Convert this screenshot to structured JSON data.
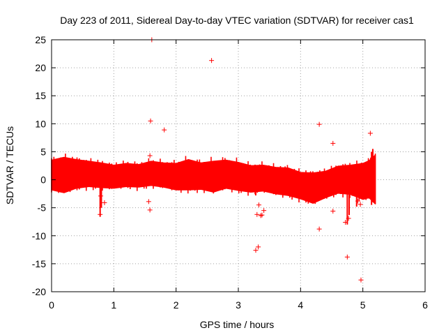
{
  "chart_data": {
    "type": "scatter",
    "title": "Day 223 of 2011, Sidereal Day-to-day VTEC variation (SDTVAR) for receiver cas1",
    "xlabel": "GPS time / hours",
    "ylabel": "SDTVAR / TECUs",
    "xlim": [
      0,
      6
    ],
    "ylim": [
      -20,
      25
    ],
    "xticks": [
      0,
      1,
      2,
      3,
      4,
      5,
      6
    ],
    "yticks": [
      -20,
      -15,
      -10,
      -5,
      0,
      5,
      10,
      15,
      20,
      25
    ],
    "grid": true,
    "legend": "none",
    "marker": "plus",
    "color": "#ff0000",
    "series": [
      {
        "name": "band_upper",
        "x": [
          0.0,
          0.2,
          0.4,
          0.6,
          0.8,
          1.0,
          1.2,
          1.4,
          1.6,
          1.8,
          2.0,
          2.2,
          2.4,
          2.6,
          2.8,
          3.0,
          3.2,
          3.4,
          3.6,
          3.8,
          4.0,
          4.2,
          4.4,
          4.6,
          4.8,
          5.0,
          5.1,
          5.2
        ],
        "values": [
          3.5,
          4.0,
          3.6,
          3.3,
          3.0,
          2.6,
          2.9,
          2.7,
          3.3,
          3.0,
          2.9,
          3.6,
          3.0,
          3.3,
          3.5,
          3.1,
          2.5,
          2.6,
          2.2,
          2.1,
          1.3,
          1.2,
          1.5,
          2.4,
          2.6,
          2.9,
          3.4,
          4.4
        ]
      },
      {
        "name": "band_lower",
        "x": [
          0.0,
          0.2,
          0.4,
          0.6,
          0.8,
          1.0,
          1.2,
          1.4,
          1.6,
          1.8,
          2.0,
          2.2,
          2.4,
          2.6,
          2.8,
          3.0,
          3.2,
          3.4,
          3.6,
          3.8,
          4.0,
          4.2,
          4.4,
          4.6,
          4.8,
          5.0,
          5.1,
          5.2
        ],
        "values": [
          -1.8,
          -2.3,
          -1.5,
          -1.2,
          -1.4,
          -1.5,
          -1.2,
          -1.3,
          -1.0,
          -1.3,
          -1.8,
          -1.8,
          -1.7,
          -2.2,
          -1.5,
          -1.9,
          -2.2,
          -2.0,
          -2.5,
          -2.8,
          -3.4,
          -4.2,
          -3.2,
          -2.4,
          -2.6,
          -3.5,
          -3.2,
          -4.3
        ]
      },
      {
        "name": "outliers",
        "x": [
          1.61,
          2.57,
          1.59,
          1.81,
          4.3,
          4.52,
          5.12,
          1.58,
          1.56,
          1.58,
          0.78,
          0.79,
          0.85,
          3.3,
          3.33,
          3.38,
          3.41,
          3.36,
          3.28,
          3.32,
          4.3,
          4.52,
          4.92,
          4.96,
          4.75,
          4.77,
          4.72,
          4.97
        ],
        "values": [
          25.0,
          21.3,
          10.5,
          8.9,
          9.9,
          6.5,
          8.3,
          4.3,
          -3.9,
          -5.4,
          -6.2,
          -2.9,
          -4.1,
          -6.2,
          -4.5,
          -6.3,
          -5.5,
          -6.4,
          -12.6,
          -12.0,
          -8.8,
          -5.6,
          -3.8,
          -4.4,
          -13.8,
          -6.9,
          -7.6,
          -17.9
        ]
      }
    ],
    "spikes": [
      {
        "x": 0.78,
        "ymin": -6.6,
        "ymax": -1.0
      },
      {
        "x": 0.8,
        "ymin": -5.0,
        "ymax": -1.0
      },
      {
        "x": 3.28,
        "ymin": -2.8,
        "ymax": 0.0
      },
      {
        "x": 4.75,
        "ymin": -8.0,
        "ymax": -2.0
      },
      {
        "x": 4.78,
        "ymin": -6.3,
        "ymax": -1.5
      },
      {
        "x": 4.9,
        "ymin": -4.8,
        "ymax": -1.0
      },
      {
        "x": 5.14,
        "ymin": -4.5,
        "ymax": 5.0
      },
      {
        "x": 5.16,
        "ymin": -4.0,
        "ymax": 5.5
      }
    ]
  }
}
